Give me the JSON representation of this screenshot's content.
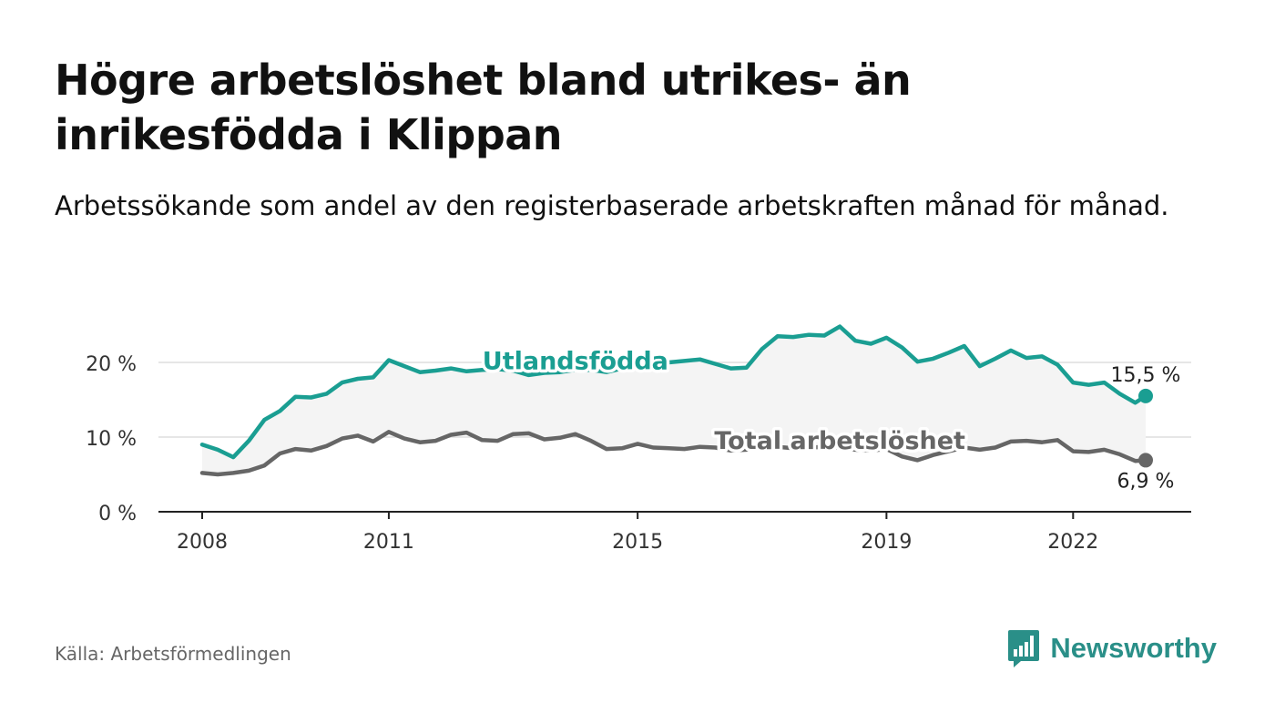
{
  "title": "Högre arbetslöshet bland utrikes- än inrikesfödda i Klippan",
  "subtitle": "Arbetssökande som andel av den registerbaserade arbetskraften månad för månad.",
  "source": "Källa: Arbetsförmedlingen",
  "brand": {
    "name": "Newsworthy",
    "icon": "bar-chart-speech-bubble-icon"
  },
  "colors": {
    "foreign": "#1a9e92",
    "total": "#666666",
    "band": "#f4f4f4",
    "grid": "#dddddd"
  },
  "chart_data": {
    "type": "line",
    "title": "Högre arbetslöshet bland utrikes- än inrikesfödda i Klippan",
    "xlabel": "",
    "ylabel": "",
    "x_ticks": [
      "2008",
      "2011",
      "2015",
      "2019",
      "2022"
    ],
    "y_ticks": [
      {
        "value": 0,
        "label": "0 %"
      },
      {
        "value": 10,
        "label": "10 %"
      },
      {
        "value": 20,
        "label": "20 %"
      }
    ],
    "ylim": [
      0,
      25
    ],
    "x_range": [
      "2008-01",
      "2023-03"
    ],
    "series": [
      {
        "name": "Utlandsfödda",
        "color": "#1a9e92",
        "end_label": "15,5 %",
        "points": [
          [
            "2008-01",
            9.0
          ],
          [
            "2008-04",
            8.3
          ],
          [
            "2008-07",
            7.3
          ],
          [
            "2008-10",
            9.5
          ],
          [
            "2009-01",
            12.3
          ],
          [
            "2009-04",
            13.5
          ],
          [
            "2009-07",
            15.4
          ],
          [
            "2009-10",
            15.3
          ],
          [
            "2010-01",
            15.8
          ],
          [
            "2010-04",
            17.3
          ],
          [
            "2010-07",
            17.8
          ],
          [
            "2010-10",
            18.0
          ],
          [
            "2011-01",
            20.3
          ],
          [
            "2011-04",
            19.5
          ],
          [
            "2011-07",
            18.7
          ],
          [
            "2011-10",
            18.9
          ],
          [
            "2012-01",
            19.2
          ],
          [
            "2012-04",
            18.8
          ],
          [
            "2012-07",
            19.0
          ],
          [
            "2012-10",
            19.1
          ],
          [
            "2013-01",
            18.9
          ],
          [
            "2013-04",
            18.3
          ],
          [
            "2013-07",
            18.6
          ],
          [
            "2013-10",
            18.7
          ],
          [
            "2014-01",
            19.0
          ],
          [
            "2014-04",
            19.0
          ],
          [
            "2014-07",
            18.7
          ],
          [
            "2014-10",
            19.2
          ],
          [
            "2015-01",
            19.6
          ],
          [
            "2015-04",
            19.7
          ],
          [
            "2015-07",
            20.0
          ],
          [
            "2015-10",
            20.2
          ],
          [
            "2016-01",
            20.4
          ],
          [
            "2016-04",
            19.8
          ],
          [
            "2016-07",
            19.2
          ],
          [
            "2016-10",
            19.3
          ],
          [
            "2017-01",
            21.8
          ],
          [
            "2017-04",
            23.5
          ],
          [
            "2017-07",
            23.4
          ],
          [
            "2017-10",
            23.7
          ],
          [
            "2018-01",
            23.6
          ],
          [
            "2018-04",
            24.8
          ],
          [
            "2018-07",
            22.9
          ],
          [
            "2018-10",
            22.5
          ],
          [
            "2019-01",
            23.3
          ],
          [
            "2019-04",
            22.0
          ],
          [
            "2019-07",
            20.1
          ],
          [
            "2019-10",
            20.5
          ],
          [
            "2020-01",
            21.3
          ],
          [
            "2020-04",
            22.2
          ],
          [
            "2020-07",
            19.5
          ],
          [
            "2020-10",
            20.5
          ],
          [
            "2021-01",
            21.6
          ],
          [
            "2021-04",
            20.6
          ],
          [
            "2021-07",
            20.8
          ],
          [
            "2021-10",
            19.7
          ],
          [
            "2022-01",
            17.3
          ],
          [
            "2022-04",
            17.0
          ],
          [
            "2022-07",
            17.3
          ],
          [
            "2022-10",
            15.8
          ],
          [
            "2023-01",
            14.6
          ],
          [
            "2023-03",
            15.5
          ]
        ]
      },
      {
        "name": "Total arbetslöshet",
        "color": "#666666",
        "end_label": "6,9 %",
        "points": [
          [
            "2008-01",
            5.2
          ],
          [
            "2008-04",
            5.0
          ],
          [
            "2008-07",
            5.2
          ],
          [
            "2008-10",
            5.5
          ],
          [
            "2009-01",
            6.2
          ],
          [
            "2009-04",
            7.8
          ],
          [
            "2009-07",
            8.4
          ],
          [
            "2009-10",
            8.2
          ],
          [
            "2010-01",
            8.8
          ],
          [
            "2010-04",
            9.8
          ],
          [
            "2010-07",
            10.2
          ],
          [
            "2010-10",
            9.4
          ],
          [
            "2011-01",
            10.7
          ],
          [
            "2011-04",
            9.8
          ],
          [
            "2011-07",
            9.3
          ],
          [
            "2011-10",
            9.5
          ],
          [
            "2012-01",
            10.3
          ],
          [
            "2012-04",
            10.6
          ],
          [
            "2012-07",
            9.6
          ],
          [
            "2012-10",
            9.5
          ],
          [
            "2013-01",
            10.4
          ],
          [
            "2013-04",
            10.5
          ],
          [
            "2013-07",
            9.7
          ],
          [
            "2013-10",
            9.9
          ],
          [
            "2014-01",
            10.4
          ],
          [
            "2014-04",
            9.5
          ],
          [
            "2014-07",
            8.4
          ],
          [
            "2014-10",
            8.5
          ],
          [
            "2015-01",
            9.1
          ],
          [
            "2015-04",
            8.6
          ],
          [
            "2015-07",
            8.5
          ],
          [
            "2015-10",
            8.4
          ],
          [
            "2016-01",
            8.7
          ],
          [
            "2016-04",
            8.6
          ],
          [
            "2016-07",
            8.2
          ],
          [
            "2016-10",
            8.3
          ],
          [
            "2017-01",
            8.8
          ],
          [
            "2017-04",
            8.7
          ],
          [
            "2017-07",
            8.5
          ],
          [
            "2017-10",
            8.6
          ],
          [
            "2018-01",
            8.7
          ],
          [
            "2018-04",
            8.6
          ],
          [
            "2018-07",
            8.3
          ],
          [
            "2018-10",
            8.2
          ],
          [
            "2019-01",
            8.4
          ],
          [
            "2019-04",
            7.4
          ],
          [
            "2019-07",
            6.9
          ],
          [
            "2019-10",
            7.6
          ],
          [
            "2020-01",
            8.1
          ],
          [
            "2020-04",
            8.6
          ],
          [
            "2020-07",
            8.3
          ],
          [
            "2020-10",
            8.6
          ],
          [
            "2021-01",
            9.4
          ],
          [
            "2021-04",
            9.5
          ],
          [
            "2021-07",
            9.3
          ],
          [
            "2021-10",
            9.6
          ],
          [
            "2022-01",
            8.1
          ],
          [
            "2022-04",
            8.0
          ],
          [
            "2022-07",
            8.3
          ],
          [
            "2022-10",
            7.7
          ],
          [
            "2023-01",
            6.8
          ],
          [
            "2023-03",
            6.9
          ]
        ]
      }
    ],
    "annotations": [
      {
        "text": "Utlandsfödda",
        "series": "Utlandsfödda",
        "at": "2014-01",
        "value": 20.2
      },
      {
        "text": "Total arbetslöshet",
        "series": "Total arbetslöshet",
        "at": "2018-04",
        "value": 9.5
      }
    ]
  }
}
